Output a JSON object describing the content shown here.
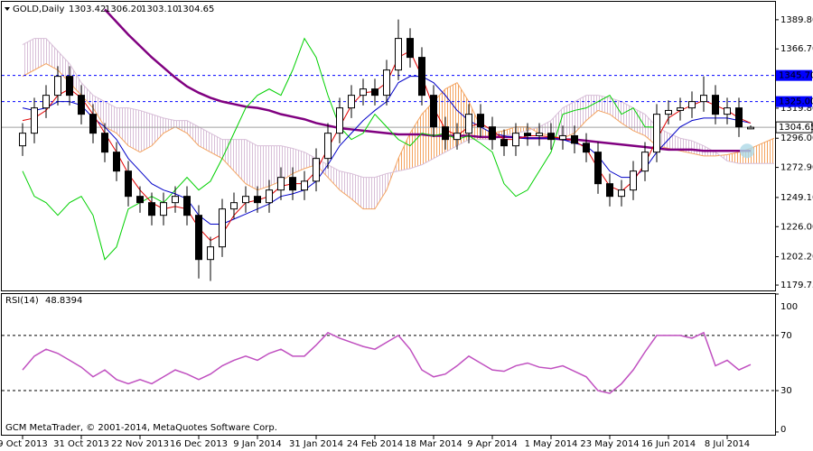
{
  "chart_data": [
    {
      "type": "candlestick",
      "title": "GOLD,Daily",
      "value_labels": [
        "1303.42",
        "1306.20",
        "1303.10",
        "1304.65"
      ],
      "categories": [
        "9 Oct 2013",
        null,
        null,
        null,
        null,
        "31 Oct 2013",
        null,
        null,
        null,
        null,
        "22 Nov 2013",
        null,
        null,
        null,
        null,
        "16 Dec 2013",
        null,
        null,
        null,
        null,
        "9 Jan 2014",
        null,
        null,
        null,
        null,
        "31 Jan 2014",
        null,
        null,
        null,
        null,
        "24 Feb 2014",
        null,
        null,
        null,
        null,
        "18 Mar 2014",
        null,
        null,
        null,
        null,
        "9 Apr 2014",
        null,
        null,
        null,
        null,
        "1 May 2014",
        null,
        null,
        null,
        null,
        "23 May 2014",
        null,
        null,
        null,
        null,
        "16 Jun 2014",
        null,
        null,
        null,
        null,
        "8 Jul 2014",
        null,
        null,
        null,
        null
      ],
      "open": [
        1290,
        1300,
        1320,
        1330,
        1345,
        1330,
        1315,
        1300,
        1285,
        1270,
        1250,
        1245,
        1235,
        1245,
        1250,
        1235,
        1200,
        1210,
        1240,
        1245,
        1250,
        1245,
        1255,
        1265,
        1255,
        1262,
        1280,
        1300,
        1320,
        1330,
        1335,
        1330,
        1350,
        1375,
        1360,
        1330,
        1305,
        1295,
        1300,
        1315,
        1305,
        1295,
        1290,
        1300,
        1298,
        1300,
        1295,
        1298,
        1292,
        1285,
        1260,
        1250,
        1255,
        1270,
        1285,
        1315,
        1318,
        1320,
        1325,
        1330,
        1315,
        1320,
        1303.42,
        null,
        null
      ],
      "high": [
        1308,
        1328,
        1338,
        1353,
        1353,
        1338,
        1323,
        1308,
        1293,
        1278,
        1258,
        1253,
        1253,
        1258,
        1258,
        1243,
        1218,
        1248,
        1253,
        1258,
        1258,
        1263,
        1273,
        1273,
        1270,
        1288,
        1308,
        1328,
        1338,
        1343,
        1343,
        1358,
        1390,
        1383,
        1368,
        1338,
        1313,
        1308,
        1323,
        1323,
        1313,
        1303,
        1308,
        1308,
        1308,
        1308,
        1306,
        1306,
        1300,
        1293,
        1268,
        1263,
        1278,
        1293,
        1323,
        1326,
        1328,
        1333,
        1345,
        1338,
        1328,
        1328,
        1306.2,
        null,
        null
      ],
      "low": [
        1282,
        1292,
        1312,
        1322,
        1322,
        1307,
        1292,
        1277,
        1262,
        1242,
        1237,
        1227,
        1227,
        1237,
        1227,
        1185,
        1183,
        1202,
        1232,
        1237,
        1237,
        1237,
        1247,
        1247,
        1247,
        1254,
        1272,
        1292,
        1312,
        1322,
        1322,
        1322,
        1342,
        1352,
        1322,
        1297,
        1287,
        1287,
        1292,
        1297,
        1287,
        1282,
        1282,
        1290,
        1290,
        1287,
        1287,
        1284,
        1277,
        1252,
        1242,
        1242,
        1247,
        1262,
        1277,
        1307,
        1310,
        1312,
        1317,
        1307,
        1307,
        1297,
        1303.1,
        null,
        null
      ],
      "close": [
        1300,
        1320,
        1330,
        1345,
        1330,
        1315,
        1300,
        1285,
        1270,
        1250,
        1245,
        1235,
        1245,
        1250,
        1235,
        1200,
        1210,
        1240,
        1245,
        1250,
        1245,
        1255,
        1265,
        1255,
        1262,
        1280,
        1300,
        1320,
        1330,
        1335,
        1330,
        1350,
        1375,
        1360,
        1330,
        1305,
        1295,
        1300,
        1315,
        1305,
        1295,
        1290,
        1300,
        1298,
        1300,
        1295,
        1298,
        1292,
        1285,
        1260,
        1250,
        1255,
        1270,
        1285,
        1315,
        1318,
        1320,
        1325,
        1330,
        1315,
        1320,
        1305,
        1304.65,
        null,
        null
      ],
      "candle_colors": {
        "up": "#ffffff",
        "down": "#000000",
        "outline": "#000000"
      },
      "cloud": {
        "span_a": [
          1345,
          1350,
          1355,
          1350,
          1340,
          1330,
          1320,
          1305,
          1300,
          1290,
          1285,
          1290,
          1300,
          1305,
          1300,
          1290,
          1285,
          1280,
          1270,
          1260,
          1255,
          1258,
          1262,
          1268,
          1272,
          1275,
          1265,
          1255,
          1248,
          1240,
          1240,
          1255,
          1280,
          1300,
          1315,
          1325,
          1335,
          1340,
          1325,
          1305,
          1300,
          1302,
          1305,
          1305,
          1300,
          1298,
          1296,
          1300,
          1310,
          1318,
          1315,
          1308,
          1302,
          1298,
          1290,
          1288,
          1286,
          1284,
          1282,
          1282,
          1283,
          1285,
          1288,
          1292,
          1296
        ],
        "span_b": [
          1370,
          1375,
          1375,
          1365,
          1355,
          1340,
          1330,
          1325,
          1320,
          1320,
          1318,
          1315,
          1312,
          1310,
          1310,
          1305,
          1300,
          1295,
          1295,
          1295,
          1290,
          1290,
          1290,
          1288,
          1285,
          1280,
          1275,
          1270,
          1268,
          1265,
          1265,
          1268,
          1270,
          1272,
          1275,
          1280,
          1285,
          1290,
          1295,
          1295,
          1295,
          1298,
          1300,
          1302,
          1305,
          1310,
          1320,
          1325,
          1330,
          1330,
          1328,
          1325,
          1320,
          1315,
          1305,
          1300,
          1296,
          1294,
          1290,
          1285,
          1278,
          1276,
          1276,
          1276,
          1276
        ],
        "colors": [
          "#f4a460",
          "#d8bfd8"
        ]
      },
      "series": [
        {
          "color": "#800080",
          "values": [
            null,
            null,
            null,
            null,
            null,
            null,
            null,
            1398,
            1388,
            1378,
            1369,
            1360,
            1352,
            1344,
            1337,
            1332,
            1328,
            1325,
            1323,
            1321,
            1320,
            1318,
            1315,
            1313,
            1311,
            1308,
            1306,
            1304,
            1303,
            1302,
            1301,
            1300,
            1299,
            1299,
            1299,
            1298,
            1298,
            1298,
            1298,
            1297,
            1297,
            1297,
            1297,
            1296,
            1296,
            1296,
            1295,
            1295,
            1294,
            1293,
            1292,
            1291,
            1290,
            1289,
            1288,
            1287,
            1287,
            1287,
            1286,
            1286,
            1286,
            1286,
            1286,
            null,
            null
          ]
        },
        {
          "color": "#00d000",
          "values": [
            1270,
            1250,
            1245,
            1235,
            1245,
            1250,
            1235,
            1200,
            1210,
            1240,
            1245,
            1250,
            1245,
            1255,
            1265,
            1255,
            1262,
            1280,
            1300,
            1320,
            1330,
            1335,
            1330,
            1350,
            1375,
            1360,
            1330,
            1305,
            1295,
            1300,
            1315,
            1305,
            1295,
            1290,
            1300,
            1298,
            1300,
            1295,
            1298,
            1292,
            1285,
            1260,
            1250,
            1255,
            1270,
            1285,
            1315,
            1318,
            1320,
            1325,
            1330,
            1315,
            1320,
            1305,
            1304.65,
            null,
            null,
            null,
            null,
            null,
            null,
            null,
            null,
            null,
            null
          ]
        },
        {
          "color": "#0000c8",
          "values": [
            1320,
            1318,
            1320,
            1325,
            1325,
            1322,
            1312,
            1305,
            1295,
            1280,
            1270,
            1260,
            1255,
            1252,
            1248,
            1235,
            1228,
            1228,
            1232,
            1236,
            1240,
            1244,
            1250,
            1252,
            1255,
            1262,
            1275,
            1290,
            1300,
            1310,
            1318,
            1325,
            1340,
            1345,
            1345,
            1340,
            1330,
            1318,
            1310,
            1305,
            1300,
            1298,
            1296,
            1296,
            1296,
            1296,
            1295,
            1292,
            1290,
            1282,
            1270,
            1265,
            1265,
            1272,
            1285,
            1295,
            1305,
            1310,
            1312,
            1312,
            1312,
            1310,
            1308,
            null,
            null
          ]
        },
        {
          "color": "#e00000",
          "values": [
            1310,
            1312,
            1318,
            1330,
            1335,
            1328,
            1315,
            1300,
            1285,
            1268,
            1255,
            1245,
            1240,
            1242,
            1240,
            1225,
            1215,
            1220,
            1235,
            1245,
            1247,
            1250,
            1258,
            1260,
            1260,
            1270,
            1288,
            1305,
            1322,
            1332,
            1333,
            1340,
            1360,
            1365,
            1345,
            1320,
            1303,
            1298,
            1305,
            1308,
            1302,
            1295,
            1295,
            1298,
            1298,
            1297,
            1296,
            1294,
            1288,
            1272,
            1258,
            1254,
            1262,
            1276,
            1295,
            1312,
            1318,
            1322,
            1326,
            1322,
            1318,
            1312,
            1308,
            null,
            null
          ]
        }
      ],
      "levels": [
        {
          "value": 1345.7,
          "label": "1345.70",
          "color": "#0000ff"
        },
        {
          "value": 1325,
          "label": "1325.00",
          "color": "#0000ff"
        }
      ],
      "ylim": [
        1175.5,
        1404
      ],
      "yticks": [
        {
          "value": 1389.8,
          "label": "1389.80"
        },
        {
          "value": 1366.7,
          "label": "1366.70"
        },
        {
          "value": 1319.8,
          "label": "1319.80"
        },
        {
          "value": 1296,
          "label": "1296.00"
        },
        {
          "value": 1272.9,
          "label": "1272.90"
        },
        {
          "value": 1249.1,
          "label": "1249.10"
        },
        {
          "value": 1226,
          "label": "1226.00"
        },
        {
          "value": 1202.2,
          "label": "1202.20"
        },
        {
          "value": 1179.75,
          "label": "1179.75"
        }
      ]
    },
    {
      "type": "line",
      "title": "RSI(14)",
      "color": "#c050c0",
      "values": [
        45,
        55,
        60,
        57,
        52,
        47,
        40,
        45,
        38,
        35,
        38,
        35,
        40,
        45,
        42,
        38,
        42,
        48,
        52,
        55,
        52,
        57,
        60,
        55,
        55,
        63,
        72,
        68,
        65,
        62,
        60,
        65,
        70,
        60,
        45,
        40,
        42,
        48,
        55,
        50,
        45,
        44,
        48,
        50,
        47,
        46,
        48,
        44,
        40,
        30,
        28,
        35,
        45,
        58,
        70,
        70,
        70,
        68,
        72,
        48,
        52,
        45,
        48.8394,
        null,
        null
      ],
      "levels": [
        70,
        30
      ],
      "ylim": [
        -2,
        100
      ],
      "yticks": [
        100,
        70,
        30,
        0
      ]
    }
  ],
  "footer": "GCM MetaTrader, © 2001-2014, MetaQuotes Software Corp."
}
